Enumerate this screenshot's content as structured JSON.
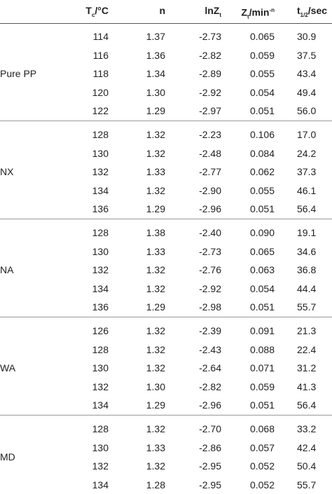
{
  "header": [
    [
      {
        "t": "T"
      },
      {
        "sub": "c"
      },
      {
        "t": "/°C"
      }
    ],
    [
      {
        "t": "n"
      }
    ],
    [
      {
        "t": "lnZ"
      },
      {
        "sub": "t"
      }
    ],
    [
      {
        "t": "Z"
      },
      {
        "sub": "t"
      },
      {
        "t": "/min"
      },
      {
        "sup": "-n"
      }
    ],
    [
      {
        "t": "t"
      },
      {
        "sub": "1/2"
      },
      {
        "t": "/sec"
      }
    ]
  ],
  "groups": [
    {
      "label": "Pure PP",
      "rows": [
        [
          "114",
          "1.37",
          "-2.73",
          "0.065",
          "30.9"
        ],
        [
          "116",
          "1.36",
          "-2.82",
          "0.059",
          "37.5"
        ],
        [
          "118",
          "1.34",
          "-2.89",
          "0.055",
          "43.4"
        ],
        [
          "120",
          "1.30",
          "-2.92",
          "0.054",
          "49.4"
        ],
        [
          "122",
          "1.29",
          "-2.97",
          "0.051",
          "56.0"
        ]
      ]
    },
    {
      "label": "NX",
      "rows": [
        [
          "128",
          "1.32",
          "-2.23",
          "0.106",
          "17.0"
        ],
        [
          "130",
          "1.32",
          "-2.48",
          "0.084",
          "24.2"
        ],
        [
          "132",
          "1.33",
          "-2.77",
          "0.062",
          "37.3"
        ],
        [
          "134",
          "1.32",
          "-2.90",
          "0.055",
          "46.1"
        ],
        [
          "136",
          "1.29",
          "-2.96",
          "0.051",
          "56.4"
        ]
      ]
    },
    {
      "label": "NA",
      "rows": [
        [
          "128",
          "1.38",
          "-2.40",
          "0.090",
          "19.1"
        ],
        [
          "130",
          "1.33",
          "-2.73",
          "0.065",
          "34.6"
        ],
        [
          "132",
          "1.32",
          "-2.76",
          "0.063",
          "36.8"
        ],
        [
          "134",
          "1.32",
          "-2.92",
          "0.054",
          "44.4"
        ],
        [
          "136",
          "1.29",
          "-2.98",
          "0.051",
          "55.7"
        ]
      ]
    },
    {
      "label": "WA",
      "rows": [
        [
          "126",
          "1.32",
          "-2.39",
          "0.091",
          "21.3"
        ],
        [
          "128",
          "1.32",
          "-2.43",
          "0.088",
          "22.4"
        ],
        [
          "130",
          "1.32",
          "-2.64",
          "0.071",
          "31.2"
        ],
        [
          "132",
          "1.30",
          "-2.82",
          "0.059",
          "41.3"
        ],
        [
          "134",
          "1.29",
          "-2.96",
          "0.051",
          "56.4"
        ]
      ]
    },
    {
      "label": "MD",
      "rows": [
        [
          "128",
          "1.32",
          "-2.70",
          "0.068",
          "33.2"
        ],
        [
          "130",
          "1.33",
          "-2.86",
          "0.057",
          "42.4"
        ],
        [
          "132",
          "1.32",
          "-2.95",
          "0.052",
          "50.4"
        ],
        [
          "134",
          "1.28",
          "-2.95",
          "0.052",
          "55.7"
        ]
      ]
    }
  ]
}
